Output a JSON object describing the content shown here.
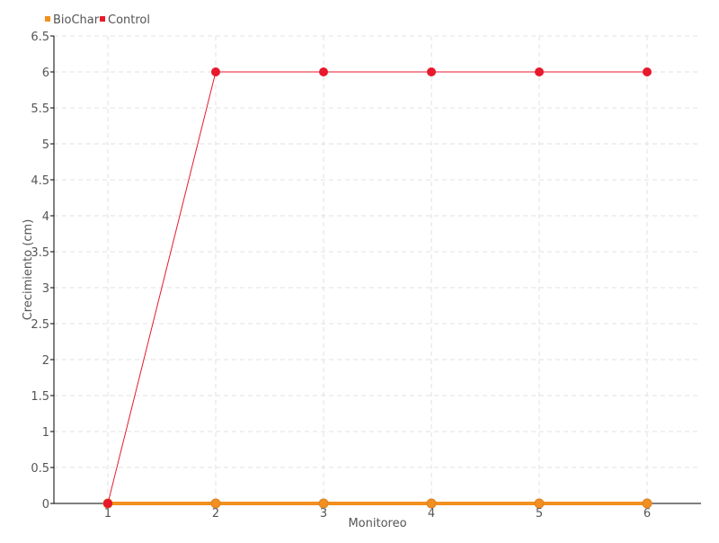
{
  "chart_data": {
    "type": "line",
    "title": "",
    "xlabel": "Monitoreo",
    "ylabel": "Crecimiento (cm)",
    "categories": [
      "1",
      "2",
      "3",
      "4",
      "5",
      "6"
    ],
    "ylim": [
      0,
      6.5
    ],
    "yticks": [
      "0",
      "0.5",
      "1",
      "1.5",
      "2",
      "2.5",
      "3",
      "3.5",
      "4",
      "4.5",
      "5",
      "5.5",
      "6",
      "6.5"
    ],
    "grid": true,
    "legend_position": "top-left",
    "series": [
      {
        "name": "BioChar",
        "color": "#f28f1e",
        "values": [
          0,
          0,
          0,
          0,
          0,
          0
        ]
      },
      {
        "name": "Control",
        "color": "#e8192c",
        "values": [
          0,
          6,
          6,
          6,
          6,
          6
        ]
      }
    ]
  }
}
